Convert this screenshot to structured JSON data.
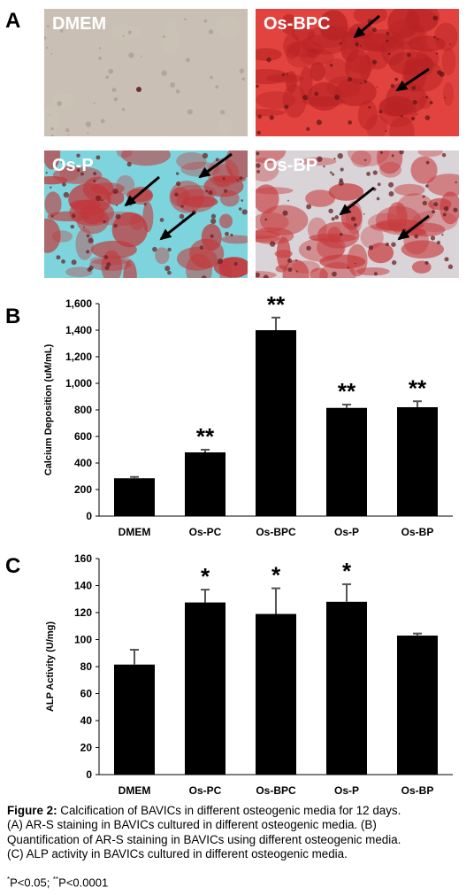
{
  "panels": {
    "a": "A",
    "b": "B",
    "c": "C"
  },
  "micrographs": [
    {
      "label": "DMEM",
      "stain": "none",
      "colors": {
        "base": "#c9bfb4",
        "spot": "#8a2a2a",
        "dark": "#6b3030"
      }
    },
    {
      "label": "Os-BPC",
      "stain": "heavy",
      "colors": {
        "base": "#e2433e",
        "spot": "#b82324",
        "dark": "#5a1515"
      }
    },
    {
      "label": "Os-P",
      "stain": "moderate",
      "colors": {
        "base": "#7ed4dc",
        "spot": "#c2373a",
        "dark": "#6a1a1c"
      }
    },
    {
      "label": "Os-BP",
      "stain": "moderate",
      "colors": {
        "base": "#d9d4d8",
        "spot": "#c73b3d",
        "dark": "#5c1718"
      }
    }
  ],
  "chart_data": [
    {
      "type": "bar",
      "categories": [
        "DMEM",
        "Os-PC",
        "Os-BPC",
        "Os-P",
        "Os-BP"
      ],
      "values": [
        285,
        480,
        1400,
        815,
        820
      ],
      "errors": [
        10,
        20,
        95,
        25,
        45
      ],
      "significance": [
        "",
        "**",
        "**",
        "**",
        "**"
      ],
      "ylabel": "Calcium Deposition (uM/mL)",
      "ylim": [
        0,
        1600
      ],
      "yticks": [
        "0",
        "200",
        "400",
        "600",
        "800",
        "1,000",
        "1,200",
        "1,400",
        "1,600"
      ],
      "grid": false,
      "bar_color": "#000000"
    },
    {
      "type": "bar",
      "categories": [
        "DMEM",
        "Os-PC",
        "Os-BPC",
        "Os-P",
        "Os-BP"
      ],
      "values": [
        81.5,
        127.5,
        119,
        128,
        103
      ],
      "errors": [
        11,
        9.5,
        19,
        13,
        1.5
      ],
      "significance": [
        "",
        "*",
        "*",
        "*",
        ""
      ],
      "ylabel": "ALP Activity (U/mg)",
      "ylim": [
        0,
        160
      ],
      "yticks": [
        "0",
        "20",
        "40",
        "60",
        "80",
        "100",
        "120",
        "140",
        "160"
      ],
      "grid": false,
      "bar_color": "#000000"
    }
  ],
  "caption": {
    "figure_label": "Figure 2:",
    "line1": "Calcification of BAVICs in different osteogenic media for 12 days.",
    "line2": "(A) AR-S staining in BAVICs cultured in different osteogenic media. (B)",
    "line3": "Quantification of AR-S staining in BAVICs using different osteogenic media.",
    "line4": "(C) ALP activity in BAVICs cultured in different osteogenic media.",
    "sig_mark_1": "*",
    "sig_text_1": "P<0.05; ",
    "sig_mark_2": "**",
    "sig_text_2": "P<0.0001"
  }
}
